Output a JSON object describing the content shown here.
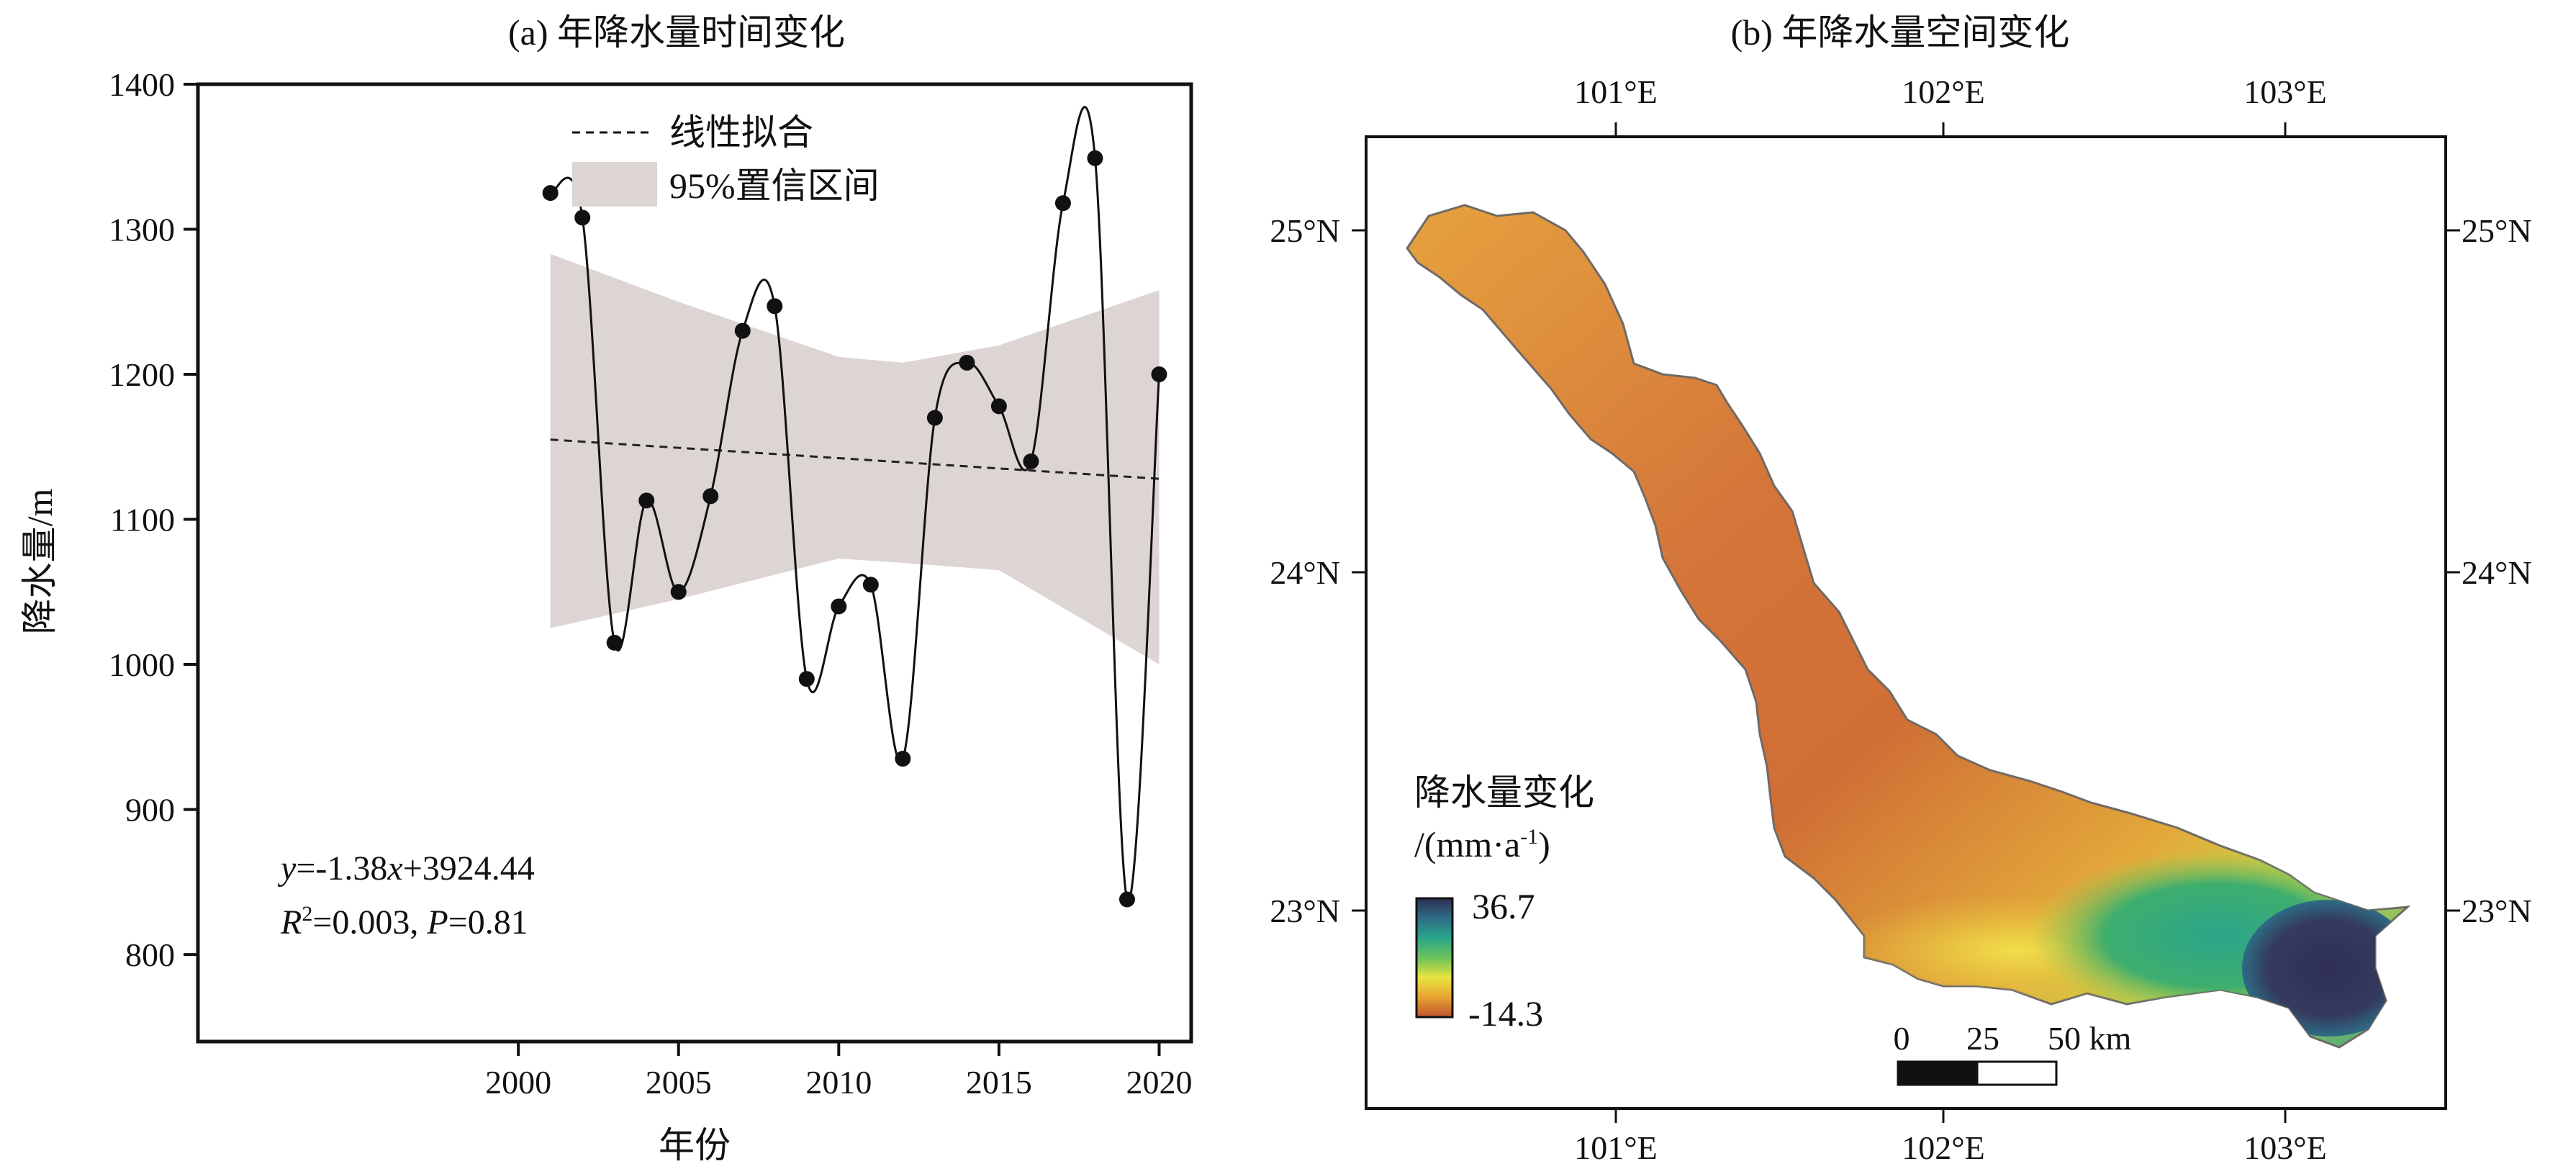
{
  "chart_data": [
    {
      "type": "line",
      "title": "(a) 年降水量时间变化",
      "xlabel": "年份",
      "ylabel": "降水量/m",
      "xlim": [
        1990,
        2021
      ],
      "ylim": [
        740,
        1400
      ],
      "xticks": [
        2000,
        2005,
        2010,
        2015,
        2020
      ],
      "yticks": [
        800,
        900,
        1000,
        1100,
        1200,
        1300,
        1400
      ],
      "grid": false,
      "legend_position": "top",
      "legend": {
        "fit_label": "线性拟合",
        "ci_label": "95%置信区间"
      },
      "series": [
        {
          "x": [
            2001,
            2002,
            2003,
            2004,
            2005,
            2006,
            2007,
            2008,
            2009,
            2010,
            2011,
            2012,
            2013,
            2014,
            2015,
            2016,
            2017,
            2018,
            2019,
            2020
          ],
          "values": [
            1325,
            1308,
            1015,
            1113,
            1050,
            1116,
            1230,
            1247,
            990,
            1040,
            1055,
            935,
            1170,
            1208,
            1178,
            1140,
            1318,
            1349,
            838,
            1200
          ]
        }
      ],
      "trend": {
        "x": [
          2001,
          2020
        ],
        "y": [
          1155,
          1128
        ]
      },
      "confidence_band": {
        "x": [
          2001,
          2005,
          2010,
          2012,
          2015,
          2020
        ],
        "upper": [
          1283,
          1250,
          1212,
          1208,
          1220,
          1258
        ],
        "lower": [
          1025,
          1045,
          1073,
          1070,
          1065,
          1000
        ]
      },
      "annotations": {
        "eq_y": "y",
        "eq_a": "=-1.38",
        "eq_x": "x",
        "eq_b": "+3924.44",
        "r_symbol": "R",
        "r_sup": "2",
        "r_val": "=0.003, ",
        "p_symbol": "P",
        "p_val": "=0.81"
      }
    },
    {
      "type": "heatmap",
      "title": "(b) 年降水量空间变化",
      "x_tick_labels": [
        "101°E",
        "102°E",
        "103°E"
      ],
      "y_tick_labels": [
        "25°N",
        "24°N",
        "23°N"
      ],
      "colorbar": {
        "title": "降水量变化",
        "unit_prefix": "/(mm·a",
        "unit_sup": "-1",
        "unit_suffix": ")",
        "max": "36.7",
        "min": "-14.3",
        "colors": [
          "#2f2f55",
          "#2e6c85",
          "#2aa58a",
          "#6cc25b",
          "#e8e43f",
          "#e8a332",
          "#c0532f"
        ]
      },
      "scalebar": {
        "labels": [
          "0",
          "25",
          "50 km"
        ]
      }
    }
  ]
}
